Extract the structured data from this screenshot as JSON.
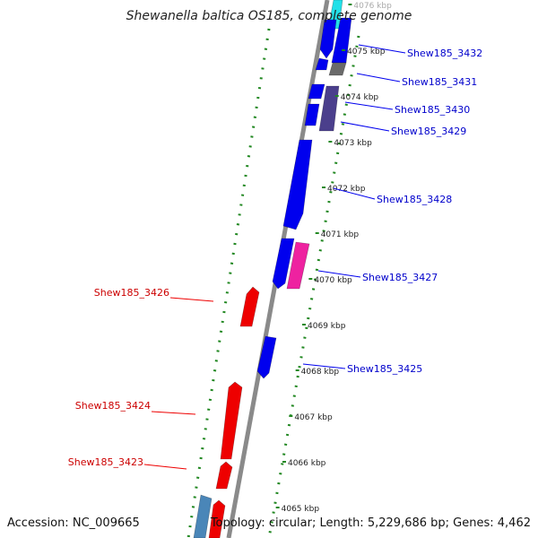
{
  "title": "Shewanella baltica OS185, complete genome",
  "footer": {
    "accession_label": "Accession:",
    "accession": "NC_009665",
    "topology_label": "Topology:",
    "topology": "circular",
    "length_label": "Length:",
    "length": "5,229,686 bp",
    "genes_label": "Genes:",
    "genes": "4,462"
  },
  "colors": {
    "forward_gene": "#0000ee",
    "reverse_gene": "#ee0000",
    "purple_gene": "#4b3f8c",
    "pink_gene": "#ee22a0",
    "cyan_gene": "#22e0e8",
    "steelblue_gene": "#4a86b8",
    "backbone": "#8a8a8a",
    "dots": "#228822",
    "forward_label": "#0000cc",
    "reverse_label": "#cc0000"
  },
  "kbp_ticks": [
    {
      "label": "4076 kbp",
      "kbp": 4076
    },
    {
      "label": "4075 kbp",
      "kbp": 4075
    },
    {
      "label": "4074 kbp",
      "kbp": 4074
    },
    {
      "label": "4073 kbp",
      "kbp": 4073
    },
    {
      "label": "4072 kbp",
      "kbp": 4072
    },
    {
      "label": "4071 kbp",
      "kbp": 4071
    },
    {
      "label": "4070 kbp",
      "kbp": 4070
    },
    {
      "label": "4069 kbp",
      "kbp": 4069
    },
    {
      "label": "4068 kbp",
      "kbp": 4068
    },
    {
      "label": "4067 kbp",
      "kbp": 4067
    },
    {
      "label": "4066 kbp",
      "kbp": 4066
    },
    {
      "label": "4065 kbp",
      "kbp": 4065
    }
  ],
  "forward_gene_labels": [
    "Shew185_3432",
    "Shew185_3431",
    "Shew185_3430",
    "Shew185_3429",
    "Shew185_3428",
    "Shew185_3427",
    "Shew185_3425"
  ],
  "reverse_gene_labels": [
    "Shew185_3426",
    "Shew185_3424",
    "Shew185_3423"
  ]
}
